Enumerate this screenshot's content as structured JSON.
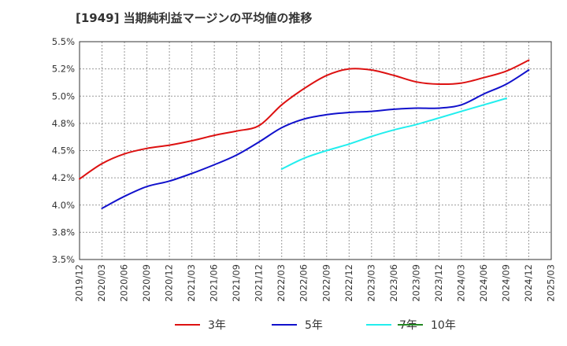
{
  "chart_data": {
    "type": "line",
    "title": "[1949]  当期純利益マージンの平均値の推移",
    "xlabel": "",
    "ylabel": "",
    "ylim": [
      3.5,
      5.5
    ],
    "yticks": [
      "5.5%",
      "5.2%",
      "5.0%",
      "4.8%",
      "4.5%",
      "4.2%",
      "4.0%",
      "3.8%",
      "3.5%"
    ],
    "ytick_values": [
      5.5,
      5.25,
      5.0,
      4.75,
      4.5,
      4.25,
      4.0,
      3.75,
      3.5
    ],
    "x_categories": [
      "2019/12",
      "2020/03",
      "2020/06",
      "2020/09",
      "2020/12",
      "2021/03",
      "2021/06",
      "2021/09",
      "2021/12",
      "2022/03",
      "2022/06",
      "2022/09",
      "2022/12",
      "2023/03",
      "2023/06",
      "2023/09",
      "2023/12",
      "2024/03",
      "2024/06",
      "2024/09",
      "2024/12",
      "2025/03"
    ],
    "grid": true,
    "legend_position": "bottom",
    "series": [
      {
        "name": "3年",
        "color": "#dd1111",
        "start_index": 0,
        "values": [
          4.24,
          4.38,
          4.47,
          4.52,
          4.55,
          4.59,
          4.64,
          4.68,
          4.73,
          4.92,
          5.07,
          5.19,
          5.25,
          5.24,
          5.19,
          5.13,
          5.11,
          5.12,
          5.17,
          5.23,
          5.33
        ]
      },
      {
        "name": "5年",
        "color": "#1111cc",
        "start_index": 1,
        "values": [
          3.97,
          4.08,
          4.17,
          4.22,
          4.29,
          4.37,
          4.46,
          4.58,
          4.71,
          4.79,
          4.83,
          4.85,
          4.86,
          4.88,
          4.89,
          4.89,
          4.92,
          5.02,
          5.11,
          5.24
        ]
      },
      {
        "name": "7年",
        "color": "#22eeee",
        "start_index": 9,
        "values": [
          4.33,
          4.43,
          4.5,
          4.56,
          4.63,
          4.69,
          4.74,
          4.8,
          4.86,
          4.92,
          4.98
        ]
      },
      {
        "name": "10年",
        "color": "#228822",
        "start_index": 0,
        "values": []
      }
    ]
  }
}
